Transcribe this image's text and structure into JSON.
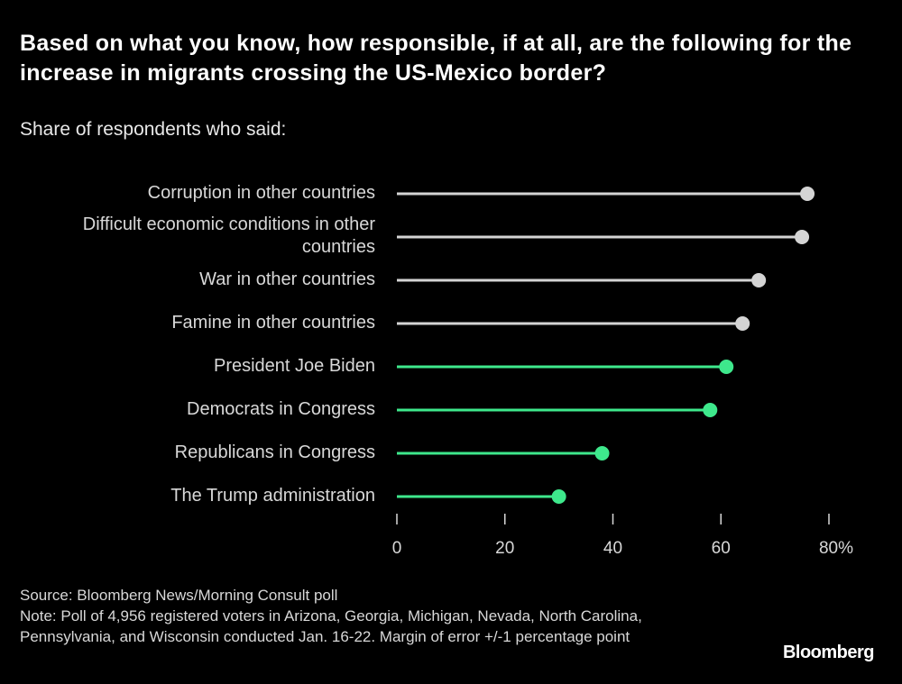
{
  "chart_data": {
    "type": "lollipop",
    "orientation": "horizontal",
    "title": "Based on what you know, how responsible, if at all, are the following for the increase in migrants crossing the US-Mexico border?",
    "subtitle": "Share of respondents who said:",
    "categories": [
      "Corruption in other countries",
      "Difficult economic conditions in other countries",
      "War in other countries",
      "Famine in other countries",
      "President Joe Biden",
      "Democrats in Congress",
      "Republicans in Congress",
      "The Trump administration"
    ],
    "values": [
      76,
      75,
      67,
      64,
      61,
      58,
      38,
      30
    ],
    "colors": [
      "#d4d4d4",
      "#d4d4d4",
      "#d4d4d4",
      "#d4d4d4",
      "#3ee88c",
      "#3ee88c",
      "#3ee88c",
      "#3ee88c"
    ],
    "xlim": [
      0,
      80
    ],
    "xticks": [
      0,
      20,
      40,
      60,
      {
        "value": 80,
        "label": "80%"
      }
    ],
    "source": "Source: Bloomberg News/Morning Consult poll",
    "note": "Note: Poll of 4,956 registered voters in Arizona, Georgia, Michigan, Nevada, North Carolina, Pennsylvania, and Wisconsin conducted Jan. 16-22. Margin of error +/-1 percentage point",
    "brand": "Bloomberg"
  }
}
